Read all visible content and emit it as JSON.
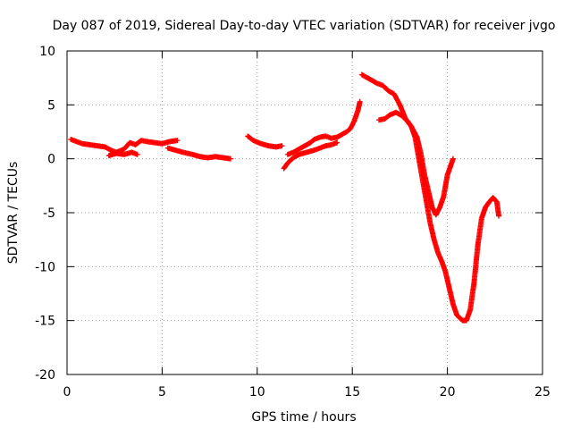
{
  "chart_data": {
    "type": "scatter",
    "title": "Day 087 of 2019, Sidereal Day-to-day VTEC variation (SDTVAR) for receiver jvgo",
    "xlabel": "GPS time / hours",
    "ylabel": "SDTVAR / TECUs",
    "xlim": [
      0,
      25
    ],
    "ylim": [
      -20,
      10
    ],
    "xticks": [
      "0",
      "5",
      "10",
      "15",
      "20",
      "25"
    ],
    "yticks": [
      "10",
      "5",
      "0",
      "-5",
      "-10",
      "-15",
      "-20"
    ],
    "grid": true,
    "marker": "plus",
    "series": [
      {
        "color": "#ff0000",
        "segments": [
          [
            [
              0.2,
              1.8
            ],
            [
              0.5,
              1.6
            ],
            [
              0.8,
              1.4
            ],
            [
              1.2,
              1.3
            ],
            [
              1.6,
              1.2
            ],
            [
              2.0,
              1.1
            ],
            [
              2.3,
              0.8
            ],
            [
              2.6,
              0.6
            ],
            [
              3.0,
              0.9
            ],
            [
              3.3,
              1.5
            ],
            [
              3.6,
              1.3
            ],
            [
              3.9,
              1.7
            ],
            [
              4.2,
              1.6
            ],
            [
              4.6,
              1.5
            ],
            [
              5.0,
              1.4
            ],
            [
              5.4,
              1.6
            ],
            [
              5.8,
              1.7
            ]
          ],
          [
            [
              2.2,
              0.3
            ],
            [
              2.6,
              0.5
            ],
            [
              3.0,
              0.4
            ],
            [
              3.4,
              0.6
            ],
            [
              3.7,
              0.4
            ]
          ],
          [
            [
              5.3,
              1.0
            ],
            [
              5.7,
              0.8
            ],
            [
              6.1,
              0.6
            ],
            [
              6.6,
              0.4
            ],
            [
              7.0,
              0.2
            ],
            [
              7.4,
              0.1
            ],
            [
              7.8,
              0.2
            ],
            [
              8.2,
              0.1
            ],
            [
              8.6,
              0.0
            ]
          ],
          [
            [
              9.5,
              2.1
            ],
            [
              9.8,
              1.7
            ],
            [
              10.2,
              1.4
            ],
            [
              10.6,
              1.2
            ],
            [
              11.0,
              1.1
            ],
            [
              11.3,
              1.2
            ]
          ],
          [
            [
              11.4,
              -0.9
            ],
            [
              11.6,
              -0.4
            ],
            [
              11.9,
              0.1
            ],
            [
              12.2,
              0.4
            ],
            [
              12.6,
              0.6
            ],
            [
              13.0,
              0.8
            ],
            [
              13.3,
              1.0
            ],
            [
              13.6,
              1.2
            ],
            [
              13.9,
              1.3
            ],
            [
              14.2,
              1.5
            ]
          ],
          [
            [
              11.6,
              0.4
            ],
            [
              11.9,
              0.6
            ],
            [
              12.2,
              0.9
            ],
            [
              12.5,
              1.2
            ],
            [
              12.8,
              1.5
            ],
            [
              13.0,
              1.8
            ],
            [
              13.3,
              2.0
            ],
            [
              13.6,
              2.1
            ],
            [
              13.9,
              1.9
            ],
            [
              14.2,
              2.0
            ],
            [
              14.5,
              2.3
            ],
            [
              14.7,
              2.5
            ],
            [
              14.9,
              2.8
            ],
            [
              15.1,
              3.5
            ],
            [
              15.3,
              4.5
            ],
            [
              15.4,
              5.3
            ]
          ],
          [
            [
              15.5,
              7.8
            ],
            [
              15.8,
              7.5
            ],
            [
              16.0,
              7.3
            ],
            [
              16.3,
              7.0
            ],
            [
              16.6,
              6.8
            ],
            [
              16.9,
              6.3
            ],
            [
              17.2,
              6.0
            ],
            [
              17.5,
              5.0
            ],
            [
              17.8,
              3.7
            ],
            [
              18.1,
              3.0
            ],
            [
              18.4,
              2.0
            ],
            [
              18.6,
              0.5
            ],
            [
              18.8,
              -1.5
            ],
            [
              19.0,
              -3.0
            ],
            [
              19.2,
              -4.5
            ],
            [
              19.4,
              -5.2
            ],
            [
              19.6,
              -4.5
            ],
            [
              19.8,
              -3.5
            ],
            [
              20.0,
              -1.5
            ],
            [
              20.2,
              -0.5
            ],
            [
              20.3,
              0.0
            ]
          ],
          [
            [
              16.4,
              3.6
            ],
            [
              16.7,
              3.7
            ],
            [
              17.0,
              4.1
            ],
            [
              17.3,
              4.3
            ],
            [
              17.6,
              4.0
            ],
            [
              17.9,
              3.5
            ],
            [
              18.1,
              3.0
            ],
            [
              18.3,
              2.0
            ],
            [
              18.5,
              0.0
            ],
            [
              18.7,
              -2.0
            ],
            [
              18.9,
              -4.0
            ],
            [
              19.1,
              -6.0
            ],
            [
              19.3,
              -7.5
            ],
            [
              19.5,
              -8.7
            ],
            [
              19.7,
              -9.5
            ],
            [
              19.9,
              -10.5
            ],
            [
              20.1,
              -12.0
            ],
            [
              20.3,
              -13.5
            ],
            [
              20.5,
              -14.5
            ],
            [
              20.8,
              -15.0
            ],
            [
              21.0,
              -15.0
            ],
            [
              21.2,
              -14.0
            ],
            [
              21.4,
              -11.5
            ],
            [
              21.6,
              -8.0
            ],
            [
              21.8,
              -5.5
            ],
            [
              22.0,
              -4.5
            ],
            [
              22.2,
              -4.0
            ],
            [
              22.4,
              -3.6
            ],
            [
              22.6,
              -4.0
            ],
            [
              22.7,
              -5.3
            ]
          ]
        ]
      }
    ]
  }
}
